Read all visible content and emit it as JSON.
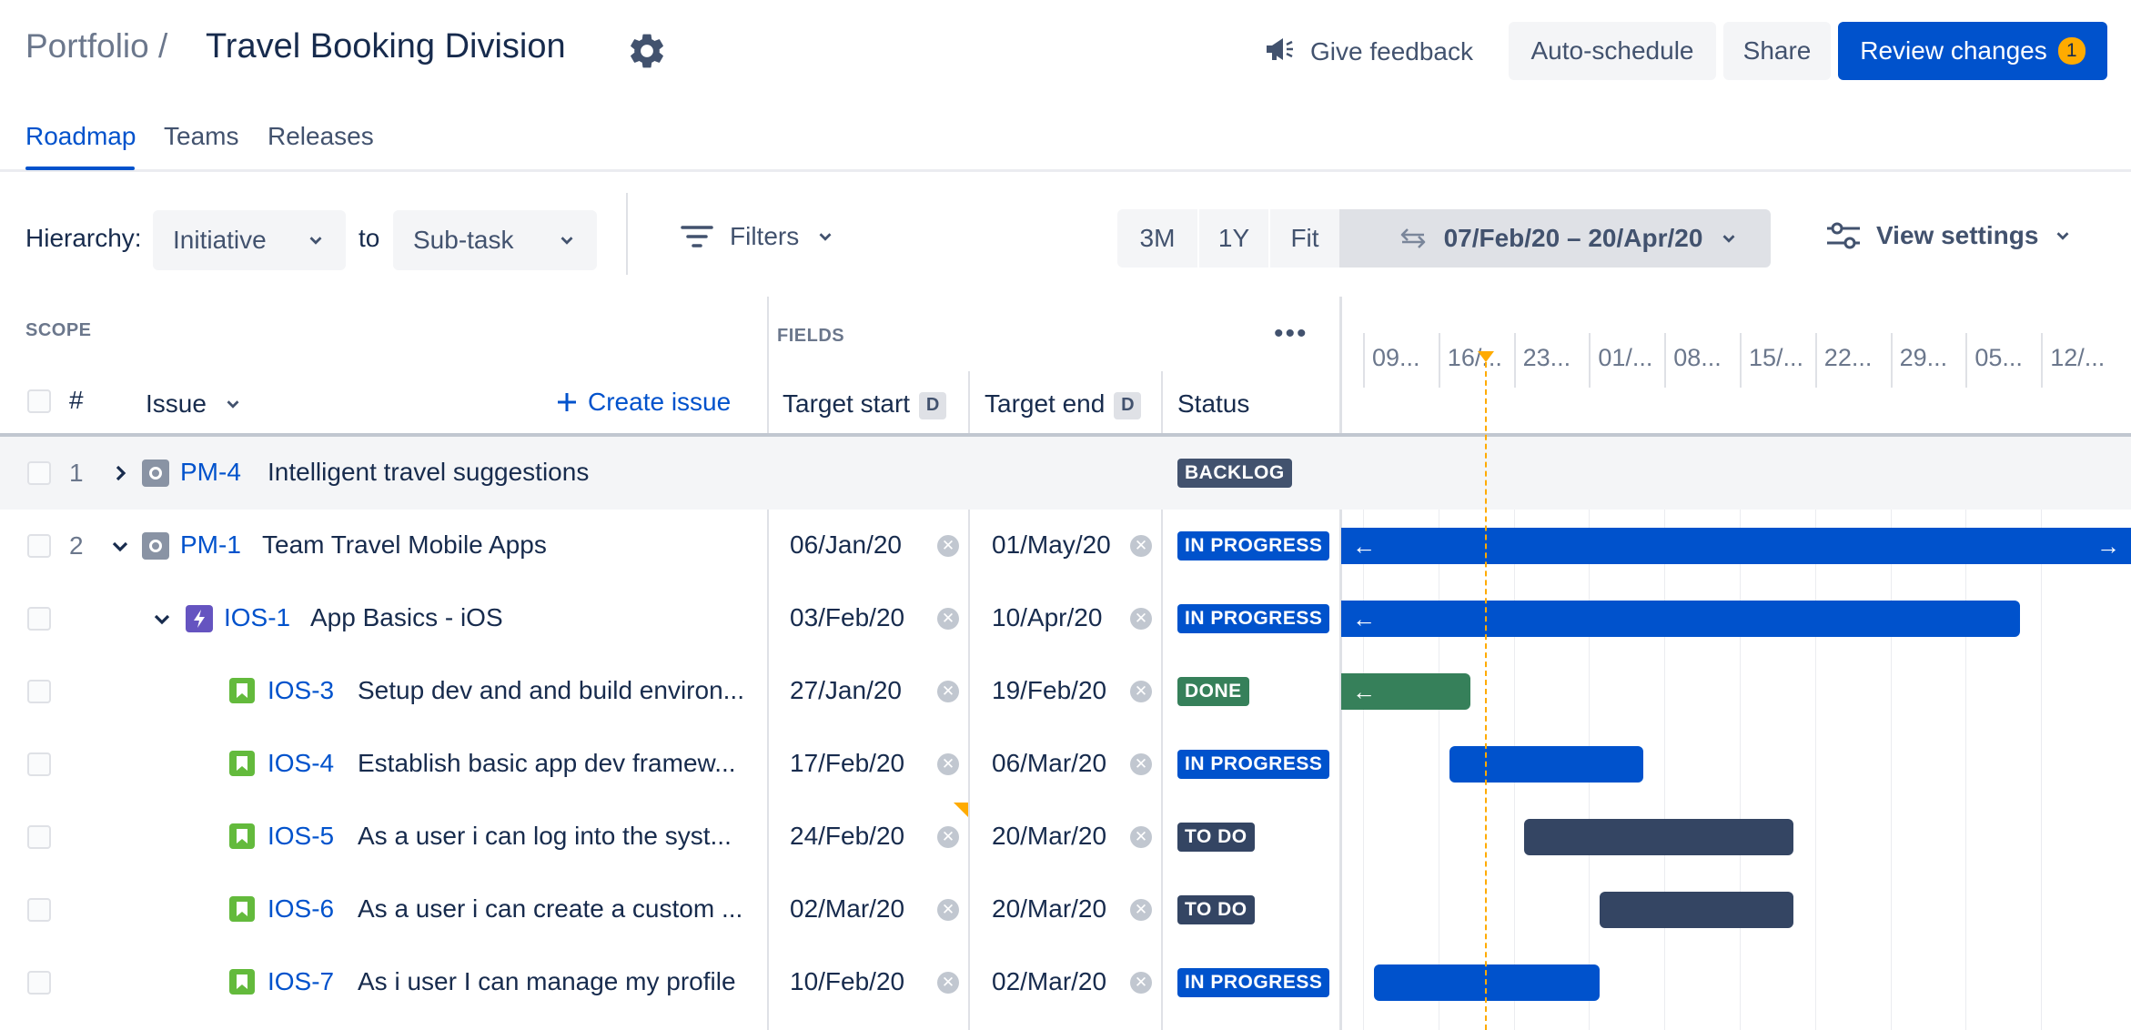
{
  "header": {
    "breadcrumb": "Portfolio /",
    "title": "Travel Booking Division",
    "feedback_label": "Give feedback",
    "auto_schedule_label": "Auto-schedule",
    "share_label": "Share",
    "review_label": "Review changes",
    "review_count": "1"
  },
  "tabs": [
    {
      "label": "Roadmap",
      "active": true
    },
    {
      "label": "Teams",
      "active": false
    },
    {
      "label": "Releases",
      "active": false
    }
  ],
  "toolbar": {
    "hierarchy_label": "Hierarchy:",
    "hierarchy_from": "Initiative",
    "to_label": "to",
    "hierarchy_to": "Sub-task",
    "filters_label": "Filters",
    "range_3m": "3M",
    "range_1y": "1Y",
    "range_fit": "Fit",
    "date_range": "07/Feb/20 – 20/Apr/20",
    "view_settings_label": "View settings"
  },
  "table": {
    "scope_label": "SCOPE",
    "fields_label": "FIELDS",
    "num_header": "#",
    "issue_header": "Issue",
    "create_issue_label": "Create issue",
    "target_start_header": "Target start",
    "target_end_header": "Target end",
    "d_badge": "D",
    "status_header": "Status",
    "more_label": "•••"
  },
  "timeline": {
    "date_labels": [
      "09...",
      "16/...",
      "23...",
      "01/...",
      "08...",
      "15/...",
      "22...",
      "29...",
      "05...",
      "12/..."
    ]
  },
  "rows": [
    {
      "num": "1",
      "expand": "collapsed",
      "type": "initiative",
      "key": "PM-4",
      "summary": "Intelligent travel suggestions",
      "start": "",
      "end": "",
      "status": "BACKLOG",
      "status_kind": "backlog",
      "highlight": true
    },
    {
      "num": "2",
      "expand": "expanded",
      "type": "initiative",
      "key": "PM-1",
      "summary": "Team Travel Mobile Apps",
      "start": "06/Jan/20",
      "end": "01/May/20",
      "status": "IN PROGRESS",
      "status_kind": "progress"
    },
    {
      "num": "",
      "expand": "expanded",
      "type": "epic",
      "key": "IOS-1",
      "summary": "App Basics - iOS",
      "start": "03/Feb/20",
      "end": "10/Apr/20",
      "status": "IN PROGRESS",
      "status_kind": "progress"
    },
    {
      "num": "",
      "expand": "none",
      "type": "story",
      "key": "IOS-3",
      "summary": "Setup dev and and build environ...",
      "start": "27/Jan/20",
      "end": "19/Feb/20",
      "status": "DONE",
      "status_kind": "done"
    },
    {
      "num": "",
      "expand": "none",
      "type": "story",
      "key": "IOS-4",
      "summary": "Establish basic app dev framew...",
      "start": "17/Feb/20",
      "end": "06/Mar/20",
      "status": "IN PROGRESS",
      "status_kind": "progress"
    },
    {
      "num": "",
      "expand": "none",
      "type": "story",
      "key": "IOS-5",
      "summary": "As a user i can log into the syst...",
      "start": "24/Feb/20",
      "end": "20/Mar/20",
      "status": "TO DO",
      "status_kind": "todo"
    },
    {
      "num": "",
      "expand": "none",
      "type": "story",
      "key": "IOS-6",
      "summary": "As a user i can create a custom ...",
      "start": "02/Mar/20",
      "end": "20/Mar/20",
      "status": "TO DO",
      "status_kind": "todo"
    },
    {
      "num": "",
      "expand": "none",
      "type": "story",
      "key": "IOS-7",
      "summary": "As i user I can manage my profile",
      "start": "10/Feb/20",
      "end": "02/Mar/20",
      "status": "IN PROGRESS",
      "status_kind": "progress"
    }
  ],
  "colors": {
    "progress": "#0052CC",
    "done": "#36805A",
    "todo": "#344563",
    "backlog": "#42526E",
    "today_line": "#FFAB00"
  }
}
